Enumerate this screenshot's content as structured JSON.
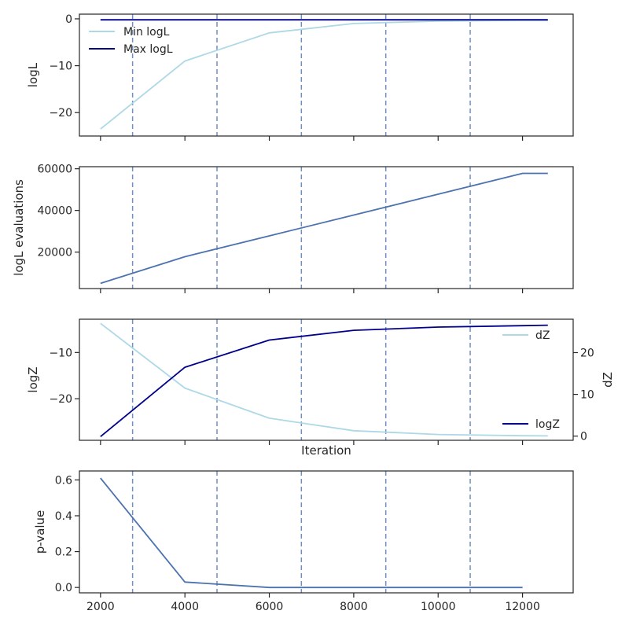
{
  "figure": {
    "vlines_x": [
      2760,
      4760,
      6760,
      8760,
      10760
    ],
    "colors": {
      "light": "#add8e6",
      "dark": "#00008b",
      "steel": "#4c72b0",
      "vline": "#6f8fc0",
      "axis": "#262626"
    }
  },
  "chart_data": [
    {
      "type": "line",
      "title": "",
      "xlabel": "",
      "ylabel": "logL",
      "xlim": [
        1500,
        13200
      ],
      "ylim": [
        -25,
        1
      ],
      "yticks": [
        0,
        -10,
        -20
      ],
      "ytick_labels": [
        "0",
        "−10",
        "−20"
      ],
      "grid": false,
      "legend": "upper-left",
      "series": [
        {
          "name": "Min logL",
          "color": "#add8e6",
          "x": [
            2000,
            4000,
            6000,
            8000,
            10000,
            12000,
            12600
          ],
          "y": [
            -23.5,
            -9,
            -3,
            -1,
            -0.5,
            -0.3,
            -0.3
          ]
        },
        {
          "name": "Max logL",
          "color": "#00008b",
          "x": [
            2000,
            12600
          ],
          "y": [
            -0.2,
            -0.2
          ]
        }
      ]
    },
    {
      "type": "line",
      "title": "",
      "xlabel": "",
      "ylabel": "logL evaluations",
      "xlim": [
        1500,
        13200
      ],
      "ylim": [
        2500,
        61000
      ],
      "yticks": [
        20000,
        40000,
        60000
      ],
      "ytick_labels": [
        "20000",
        "40000",
        "60000"
      ],
      "grid": false,
      "series": [
        {
          "color": "#4c72b0",
          "x": [
            2000,
            4000,
            6000,
            8000,
            10000,
            12000,
            12600
          ],
          "y": [
            5000,
            17800,
            27800,
            37800,
            47800,
            57800,
            57800
          ]
        }
      ]
    },
    {
      "type": "line",
      "title": "",
      "xlabel": "Iteration",
      "ylabel": "logZ",
      "ylabel_right": "dZ",
      "xlim": [
        1500,
        13200
      ],
      "ylim": [
        -29,
        -2.8
      ],
      "yticks": [
        -10,
        -20
      ],
      "ytick_labels": [
        "−10",
        "−20"
      ],
      "ylim_right": [
        -1,
        28
      ],
      "yticks_right": [
        0,
        10,
        20
      ],
      "ytick_labels_right": [
        "0",
        "10",
        "20"
      ],
      "grid": false,
      "series": [
        {
          "name": "dZ",
          "axis": "right",
          "legend": "upper-right",
          "color": "#add8e6",
          "x": [
            2000,
            4000,
            6000,
            8000,
            10000,
            12000,
            12600
          ],
          "y": [
            27,
            11.5,
            4.3,
            1.3,
            0.4,
            0.1,
            0.05
          ]
        },
        {
          "name": "logZ",
          "axis": "left",
          "legend": "lower-right",
          "color": "#00008b",
          "x": [
            2000,
            4000,
            6000,
            8000,
            10000,
            12000,
            12600
          ],
          "y": [
            -28.2,
            -13.2,
            -7.3,
            -5.2,
            -4.5,
            -4.2,
            -4.1
          ]
        }
      ]
    },
    {
      "type": "line",
      "title": "",
      "xlabel": "",
      "ylabel": "p-value",
      "xlim": [
        1500,
        13200
      ],
      "ylim": [
        -0.03,
        0.65
      ],
      "yticks": [
        0.0,
        0.2,
        0.4,
        0.6
      ],
      "ytick_labels": [
        "0.0",
        "0.2",
        "0.4",
        "0.6"
      ],
      "xticks": [
        2000,
        4000,
        6000,
        8000,
        10000,
        12000
      ],
      "xtick_labels": [
        "2000",
        "4000",
        "6000",
        "8000",
        "10000",
        "12000"
      ],
      "grid": false,
      "series": [
        {
          "color": "#4c72b0",
          "x": [
            2000,
            4000,
            6000,
            8000,
            10000,
            12000
          ],
          "y": [
            0.61,
            0.03,
            0.0,
            0.0,
            0.0,
            0.0
          ]
        }
      ]
    }
  ]
}
